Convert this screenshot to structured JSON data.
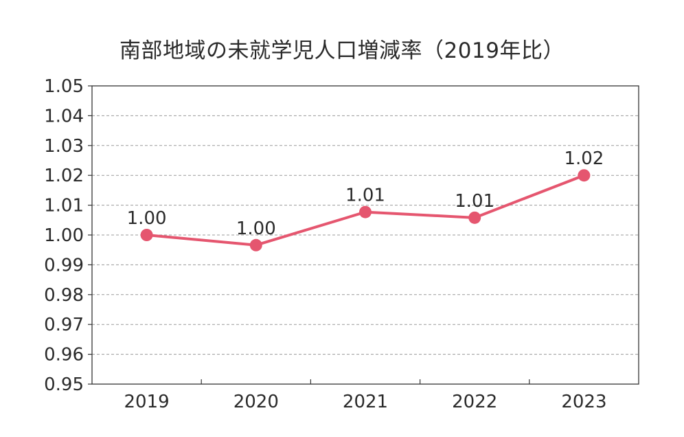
{
  "chart_data": {
    "type": "line",
    "title": "南部地域の未就学児人口増減率（2019年比）",
    "xlabel": "",
    "ylabel": "",
    "categories": [
      "2019",
      "2020",
      "2021",
      "2022",
      "2023"
    ],
    "series": [
      {
        "name": "未就学児人口増減率",
        "values": [
          1.0,
          0.9966,
          1.0077,
          1.0058,
          1.02
        ],
        "labels": [
          "1.00",
          "1.00",
          "1.01",
          "1.01",
          "1.02"
        ],
        "color": "#e5566f"
      }
    ],
    "ylim": [
      0.95,
      1.05
    ],
    "yticks": [
      "0.95",
      "0.96",
      "0.97",
      "0.98",
      "0.99",
      "1.00",
      "1.01",
      "1.02",
      "1.03",
      "1.04",
      "1.05"
    ],
    "grid": true,
    "legend": "none"
  },
  "colors": {
    "line": "#e5566f",
    "axis": "#333333",
    "grid": "#9a9a9a",
    "text": "#2a2a2a"
  }
}
